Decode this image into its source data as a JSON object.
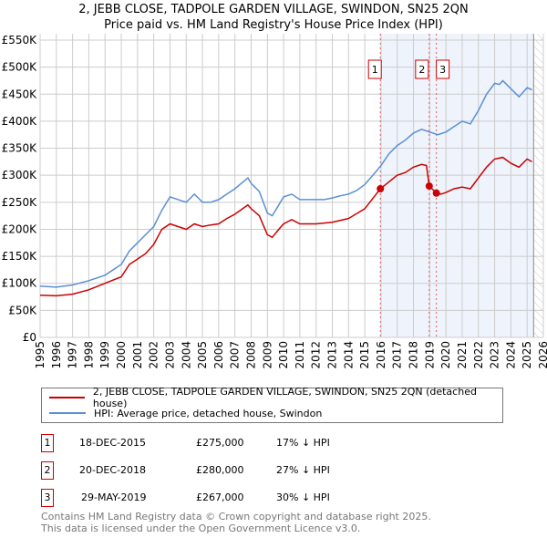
{
  "title_line1": "2, JEBB CLOSE, TADPOLE GARDEN VILLAGE, SWINDON, SN25 2QN",
  "title_line2": "Price paid vs. HM Land Registry's House Price Index (HPI)",
  "legend": {
    "property": "2, JEBB CLOSE, TADPOLE GARDEN VILLAGE, SWINDON, SN25 2QN (detached house)",
    "hpi": "HPI: Average price, detached house, Swindon"
  },
  "colors": {
    "property": "#cc0000",
    "hpi": "#5b8fd4",
    "shade": "#eef3fc"
  },
  "sales": [
    {
      "num": "1",
      "date": "18-DEC-2015",
      "price": "£275,000",
      "diff": "17% ↓ HPI",
      "x": 2015.96,
      "value": 275000
    },
    {
      "num": "2",
      "date": "20-DEC-2018",
      "price": "£280,000",
      "diff": "27% ↓ HPI",
      "x": 2018.97,
      "value": 280000
    },
    {
      "num": "3",
      "date": "29-MAY-2019",
      "price": "£267,000",
      "diff": "30% ↓ HPI",
      "x": 2019.41,
      "value": 267000
    }
  ],
  "footer": {
    "line1": "Contains HM Land Registry data © Crown copyright and database right 2025.",
    "line2": "This data is licensed under the Open Government Licence v3.0."
  },
  "chart_data": {
    "type": "line",
    "xlim": [
      1995,
      2026
    ],
    "ylim": [
      0,
      550000
    ],
    "xticks": [
      "1995",
      "1996",
      "1997",
      "1998",
      "1999",
      "2000",
      "2001",
      "2002",
      "2003",
      "2004",
      "2005",
      "2006",
      "2007",
      "2008",
      "2009",
      "2010",
      "2011",
      "2012",
      "2013",
      "2014",
      "2015",
      "2016",
      "2017",
      "2018",
      "2019",
      "2020",
      "2021",
      "2022",
      "2023",
      "2024",
      "2025",
      "2026"
    ],
    "yticks": [
      {
        "v": 0,
        "l": "£0"
      },
      {
        "v": 50000,
        "l": "£50K"
      },
      {
        "v": 100000,
        "l": "£100K"
      },
      {
        "v": 150000,
        "l": "£150K"
      },
      {
        "v": 200000,
        "l": "£200K"
      },
      {
        "v": 250000,
        "l": "£250K"
      },
      {
        "v": 300000,
        "l": "£300K"
      },
      {
        "v": 350000,
        "l": "£350K"
      },
      {
        "v": 400000,
        "l": "£400K"
      },
      {
        "v": 450000,
        "l": "£450K"
      },
      {
        "v": 500000,
        "l": "£500K"
      },
      {
        "v": 550000,
        "l": "£550K"
      }
    ],
    "grid": true,
    "shaded_from": 2015.96,
    "data_end": 2025.4,
    "series": [
      {
        "name": "hpi",
        "x": [
          1995,
          1996,
          1997,
          1998,
          1999,
          2000,
          2000.5,
          2001,
          2001.5,
          2002,
          2002.5,
          2003,
          2003.5,
          2004,
          2004.5,
          2005,
          2005.5,
          2006,
          2006.5,
          2007,
          2007.8,
          2008,
          2008.5,
          2009,
          2009.3,
          2009.7,
          2010,
          2010.5,
          2011,
          2011.5,
          2012,
          2012.5,
          2013,
          2013.5,
          2014,
          2014.5,
          2015,
          2015.5,
          2016,
          2016.5,
          2017,
          2017.5,
          2018,
          2018.5,
          2019,
          2019.5,
          2020,
          2020.5,
          2021,
          2021.5,
          2022,
          2022.5,
          2023,
          2023.3,
          2023.5,
          2024,
          2024.5,
          2025,
          2025.3
        ],
        "values": [
          95000,
          93000,
          97000,
          105000,
          115000,
          135000,
          160000,
          175000,
          190000,
          205000,
          235000,
          260000,
          255000,
          250000,
          265000,
          250000,
          250000,
          255000,
          265000,
          275000,
          295000,
          285000,
          270000,
          230000,
          225000,
          245000,
          260000,
          265000,
          255000,
          255000,
          255000,
          255000,
          258000,
          262000,
          265000,
          272000,
          283000,
          300000,
          318000,
          340000,
          355000,
          365000,
          378000,
          385000,
          380000,
          375000,
          380000,
          390000,
          400000,
          395000,
          420000,
          450000,
          470000,
          468000,
          475000,
          460000,
          445000,
          462000,
          458000
        ]
      },
      {
        "name": "property",
        "x": [
          1995,
          1996,
          1997,
          1998,
          1999,
          2000,
          2000.5,
          2001,
          2001.5,
          2002,
          2002.5,
          2003,
          2003.5,
          2004,
          2004.5,
          2005,
          2005.5,
          2006,
          2006.5,
          2007,
          2007.8,
          2008,
          2008.5,
          2009,
          2009.3,
          2009.7,
          2010,
          2010.5,
          2011,
          2012,
          2013,
          2014,
          2015,
          2015.96,
          2016.5,
          2017,
          2017.5,
          2018,
          2018.5,
          2018.8,
          2018.97,
          2019.41,
          2019.7,
          2020,
          2020.5,
          2021,
          2021.5,
          2022,
          2022.5,
          2023,
          2023.5,
          2024,
          2024.5,
          2025,
          2025.3
        ],
        "values": [
          78000,
          77000,
          80000,
          88000,
          100000,
          112000,
          135000,
          145000,
          155000,
          172000,
          200000,
          210000,
          205000,
          200000,
          210000,
          205000,
          208000,
          210000,
          220000,
          228000,
          245000,
          238000,
          225000,
          190000,
          185000,
          200000,
          210000,
          218000,
          210000,
          210000,
          213000,
          220000,
          238000,
          275000,
          288000,
          300000,
          305000,
          315000,
          320000,
          318000,
          280000,
          267000,
          265000,
          268000,
          275000,
          278000,
          275000,
          295000,
          315000,
          330000,
          333000,
          322000,
          315000,
          330000,
          325000
        ]
      }
    ]
  }
}
